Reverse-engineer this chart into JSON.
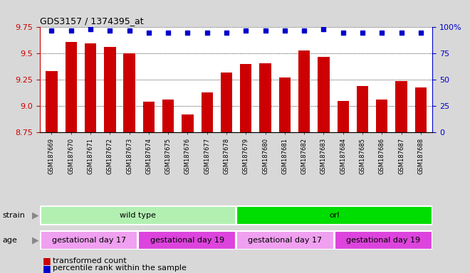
{
  "title": "GDS3157 / 1374395_at",
  "samples": [
    "GSM187669",
    "GSM187670",
    "GSM187671",
    "GSM187672",
    "GSM187673",
    "GSM187674",
    "GSM187675",
    "GSM187676",
    "GSM187677",
    "GSM187678",
    "GSM187679",
    "GSM187680",
    "GSM187681",
    "GSM187682",
    "GSM187683",
    "GSM187684",
    "GSM187685",
    "GSM187686",
    "GSM187687",
    "GSM187688"
  ],
  "bar_values": [
    9.33,
    9.61,
    9.6,
    9.56,
    9.5,
    9.04,
    9.06,
    8.92,
    9.13,
    9.32,
    9.4,
    9.41,
    9.27,
    9.53,
    9.47,
    9.05,
    9.19,
    9.06,
    9.24,
    9.18
  ],
  "percentile_values": [
    97,
    97,
    98,
    97,
    97,
    95,
    95,
    95,
    95,
    95,
    97,
    97,
    97,
    97,
    98,
    95,
    95,
    95,
    95,
    95
  ],
  "ylim_left": [
    8.75,
    9.75
  ],
  "ylim_right": [
    0,
    100
  ],
  "yticks_left": [
    8.75,
    9.0,
    9.25,
    9.5,
    9.75
  ],
  "yticks_right": [
    0,
    25,
    50,
    75,
    100
  ],
  "bar_color": "#cc0000",
  "dot_color": "#0000cc",
  "grid_color": "#000000",
  "strain_labels": [
    {
      "text": "wild type",
      "start": 0,
      "end": 9,
      "color": "#b2f0b2"
    },
    {
      "text": "orl",
      "start": 10,
      "end": 19,
      "color": "#00dd00"
    }
  ],
  "age_labels": [
    {
      "text": "gestational day 17",
      "start": 0,
      "end": 4,
      "color": "#f0a0f0"
    },
    {
      "text": "gestational day 19",
      "start": 5,
      "end": 9,
      "color": "#dd44dd"
    },
    {
      "text": "gestational day 17",
      "start": 10,
      "end": 14,
      "color": "#f0a0f0"
    },
    {
      "text": "gestational day 19",
      "start": 15,
      "end": 19,
      "color": "#dd44dd"
    }
  ],
  "legend_items": [
    {
      "color": "#cc0000",
      "label": "transformed count"
    },
    {
      "color": "#0000cc",
      "label": "percentile rank within the sample"
    }
  ],
  "fig_bg": "#d8d8d8",
  "plot_bg": "#ffffff",
  "label_row_bg": "#d8d8d8"
}
